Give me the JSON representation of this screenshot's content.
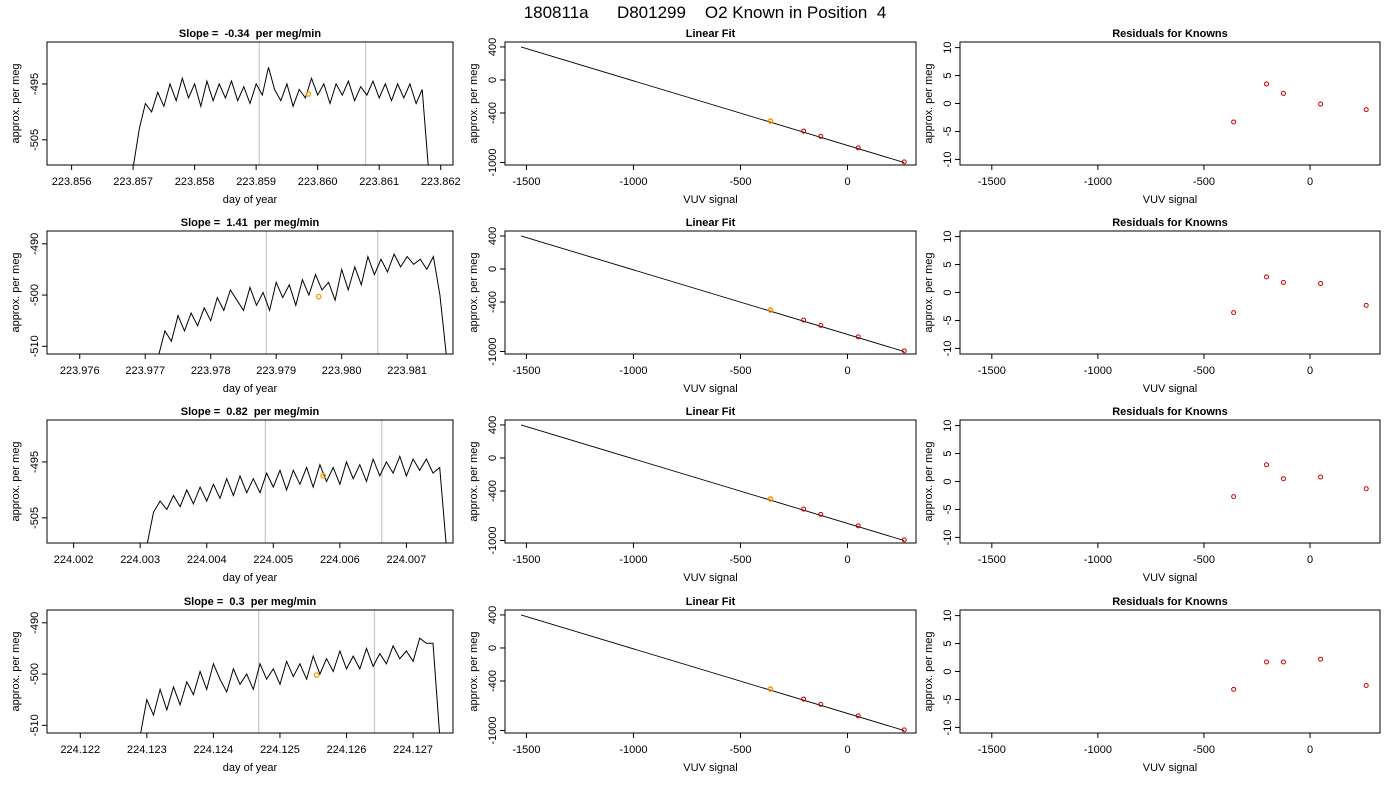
{
  "page_title": "180811a      D801299    O2 Known in Position  4",
  "colors": {
    "trace": "#000000",
    "knowns": "#cc0000",
    "highlight": "#ff9900",
    "marker_lines": "#c8c8c8"
  },
  "chart_data": [
    {
      "type": "line",
      "row": 1,
      "title": "Slope =  -0.34  per meg/min",
      "xlabel": "day of year",
      "ylabel": "approx. per meg",
      "xlim": [
        223.8556,
        223.8622
      ],
      "ylim": [
        -509.5,
        -487.5
      ],
      "xticks": [
        223.856,
        223.857,
        223.858,
        223.859,
        223.86,
        223.861,
        223.862
      ],
      "xtick_labels": [
        "223.856",
        "223.857",
        "223.858",
        "223.859",
        "223.860",
        "223.861",
        "223.862"
      ],
      "yticks": [
        -495,
        -505
      ],
      "ytick_labels": [
        "-495",
        "-505"
      ],
      "trace_x": [
        223.857,
        223.8571,
        223.8572,
        223.8573,
        223.8574,
        223.8575,
        223.8576,
        223.8577,
        223.8578,
        223.8579,
        223.858,
        223.8581,
        223.8582,
        223.8583,
        223.8584,
        223.8585,
        223.8586,
        223.8587,
        223.8588,
        223.8589,
        223.859,
        223.8591,
        223.8592,
        223.8593,
        223.8594,
        223.8595,
        223.8596,
        223.8597,
        223.8598,
        223.8599,
        223.86,
        223.8601,
        223.8602,
        223.8603,
        223.8604,
        223.8605,
        223.8606,
        223.8607,
        223.8608,
        223.8609,
        223.861,
        223.8611,
        223.8612,
        223.8613,
        223.8614,
        223.8615,
        223.8616,
        223.8617,
        223.8618
      ],
      "trace_y": [
        -510,
        -503,
        -498.5,
        -500,
        -496.5,
        -499,
        -495,
        -498,
        -494,
        -497.5,
        -495,
        -499,
        -494.5,
        -498,
        -495,
        -497.5,
        -494.5,
        -498,
        -495.5,
        -498.5,
        -495,
        -497,
        -492,
        -496,
        -498,
        -495,
        -499,
        -496,
        -497.5,
        -494,
        -497,
        -495,
        -498.5,
        -495,
        -497,
        -494.5,
        -498,
        -495.5,
        -497,
        -494.5,
        -497.5,
        -495,
        -498,
        -495,
        -497.5,
        -495,
        -498.5,
        -496,
        -510
      ],
      "marker_x": [
        223.85905,
        223.86078
      ],
      "highlight_points": [
        [
          223.85985,
          -496.8
        ]
      ]
    },
    {
      "type": "scatter",
      "row": 1,
      "title": "Linear Fit",
      "xlabel": "VUV signal",
      "ylabel": "approx. per meg",
      "xlim": [
        -1600,
        320
      ],
      "ylim": [
        -1030,
        460
      ],
      "xticks": [
        -1500,
        -1000,
        -500,
        0
      ],
      "xtick_labels": [
        "-1500",
        "-1000",
        "-500",
        "0"
      ],
      "yticks": [
        400,
        0,
        -400,
        -1000
      ],
      "ytick_labels": [
        "400",
        "0",
        "-400",
        "-1000"
      ],
      "fit_line": {
        "x": [
          -1525,
          265
        ],
        "y": [
          400,
          -1000
        ]
      },
      "knowns": {
        "x": [
          -360,
          -205,
          -125,
          50,
          265
        ],
        "y": [
          -497,
          -619,
          -683,
          -822,
          -992
        ]
      },
      "highlight_points": [
        [
          -360,
          -497
        ]
      ]
    },
    {
      "type": "scatter",
      "row": 1,
      "title": "Residuals for Knowns",
      "xlabel": "VUV signal",
      "ylabel": "approx. per meg",
      "xlim": [
        -1650,
        330
      ],
      "ylim": [
        -11,
        11
      ],
      "xticks": [
        -1500,
        -1000,
        -500,
        0
      ],
      "xtick_labels": [
        "-1500",
        "-1000",
        "-500",
        "0"
      ],
      "yticks": [
        10,
        5,
        0,
        -5,
        -10
      ],
      "ytick_labels": [
        "10",
        "5",
        "0",
        "-5",
        "-10"
      ],
      "knowns": {
        "x": [
          -360,
          -205,
          -125,
          50,
          265
        ],
        "y": [
          -3.3,
          3.5,
          1.8,
          -0.1,
          -1.1
        ]
      }
    },
    {
      "type": "line",
      "row": 2,
      "title": "Slope =  1.41  per meg/min",
      "xlabel": "day of year",
      "ylabel": "approx. per meg",
      "xlim": [
        223.9755,
        223.9817
      ],
      "ylim": [
        -511.5,
        -487.5
      ],
      "xticks": [
        223.976,
        223.977,
        223.978,
        223.979,
        223.98,
        223.981
      ],
      "xtick_labels": [
        "223.976",
        "223.977",
        "223.978",
        "223.979",
        "223.980",
        "223.981"
      ],
      "yticks": [
        -490,
        -500,
        -510
      ],
      "ytick_labels": [
        "-490",
        "-500",
        "-510"
      ],
      "trace_x": [
        223.9772,
        223.9773,
        223.9774,
        223.9775,
        223.9776,
        223.9777,
        223.9778,
        223.9779,
        223.978,
        223.9781,
        223.9782,
        223.9783,
        223.9784,
        223.9785,
        223.9786,
        223.9787,
        223.9788,
        223.9789,
        223.979,
        223.9791,
        223.9792,
        223.9793,
        223.9794,
        223.9795,
        223.9796,
        223.9797,
        223.9798,
        223.9799,
        223.98,
        223.9801,
        223.9802,
        223.9803,
        223.9804,
        223.9805,
        223.9806,
        223.9807,
        223.9808,
        223.9809,
        223.981,
        223.9811,
        223.9812,
        223.9813,
        223.9814,
        223.9815,
        223.9816
      ],
      "trace_y": [
        -512,
        -507,
        -509,
        -504,
        -507,
        -503.5,
        -506,
        -502.5,
        -505,
        -500.5,
        -503,
        -499,
        -501,
        -503,
        -498.5,
        -502,
        -499.5,
        -503,
        -497.5,
        -500.5,
        -498,
        -502,
        -497,
        -500,
        -496,
        -499,
        -497.5,
        -501,
        -495,
        -499,
        -494.5,
        -498,
        -492.5,
        -496,
        -493,
        -495.5,
        -492,
        -494.5,
        -492.5,
        -494,
        -493,
        -495,
        -492.5,
        -500,
        -512
      ],
      "marker_x": [
        223.97885,
        223.98055
      ],
      "highlight_points": [
        [
          223.97965,
          -500.3
        ]
      ]
    },
    {
      "type": "scatter",
      "row": 2,
      "title": "Linear Fit",
      "xlabel": "VUV signal",
      "ylabel": "approx. per meg",
      "xlim": [
        -1600,
        320
      ],
      "ylim": [
        -1030,
        460
      ],
      "xticks": [
        -1500,
        -1000,
        -500,
        0
      ],
      "xtick_labels": [
        "-1500",
        "-1000",
        "-500",
        "0"
      ],
      "yticks": [
        400,
        0,
        -400,
        -1000
      ],
      "ytick_labels": [
        "400",
        "0",
        "-400",
        "-1000"
      ],
      "fit_line": {
        "x": [
          -1525,
          265
        ],
        "y": [
          400,
          -1000
        ]
      },
      "knowns": {
        "x": [
          -360,
          -205,
          -125,
          50,
          265
        ],
        "y": [
          -497,
          -619,
          -683,
          -822,
          -992
        ]
      },
      "highlight_points": [
        [
          -360,
          -497
        ]
      ]
    },
    {
      "type": "scatter",
      "row": 2,
      "title": "Residuals for Knowns",
      "xlabel": "VUV signal",
      "ylabel": "approx. per meg",
      "xlim": [
        -1650,
        330
      ],
      "ylim": [
        -11,
        11
      ],
      "xticks": [
        -1500,
        -1000,
        -500,
        0
      ],
      "xtick_labels": [
        "-1500",
        "-1000",
        "-500",
        "0"
      ],
      "yticks": [
        10,
        5,
        0,
        -5,
        -10
      ],
      "ytick_labels": [
        "10",
        "5",
        "0",
        "-5",
        "-10"
      ],
      "knowns": {
        "x": [
          -360,
          -205,
          -125,
          50,
          265
        ],
        "y": [
          -3.6,
          2.8,
          1.8,
          1.6,
          -2.3
        ]
      }
    },
    {
      "type": "line",
      "row": 3,
      "title": "Slope =  0.82  per meg/min",
      "xlabel": "day of year",
      "ylabel": "approx. per meg",
      "xlim": [
        224.0016,
        224.0077
      ],
      "ylim": [
        -509.5,
        -487.5
      ],
      "xticks": [
        224.002,
        224.003,
        224.004,
        224.005,
        224.006,
        224.007
      ],
      "xtick_labels": [
        "224.002",
        "224.003",
        "224.004",
        "224.005",
        "224.006",
        "224.007"
      ],
      "yticks": [
        -495,
        -505
      ],
      "ytick_labels": [
        "-495",
        "-505"
      ],
      "trace_x": [
        224.0031,
        224.0032,
        224.0033,
        224.0034,
        224.0035,
        224.0036,
        224.0037,
        224.0038,
        224.0039,
        224.004,
        224.0041,
        224.0042,
        224.0043,
        224.0044,
        224.0045,
        224.0046,
        224.0047,
        224.0048,
        224.0049,
        224.005,
        224.0051,
        224.0052,
        224.0053,
        224.0054,
        224.0055,
        224.0056,
        224.0057,
        224.0058,
        224.0059,
        224.006,
        224.0061,
        224.0062,
        224.0063,
        224.0064,
        224.0065,
        224.0066,
        224.0067,
        224.0068,
        224.0069,
        224.007,
        224.0071,
        224.0072,
        224.0073,
        224.0074,
        224.0075,
        224.0076
      ],
      "trace_y": [
        -510,
        -504,
        -502,
        -503.5,
        -501,
        -503,
        -500,
        -502.5,
        -499.5,
        -502,
        -499,
        -501.5,
        -498,
        -501,
        -497.5,
        -500.5,
        -498,
        -500.5,
        -497,
        -499.5,
        -496.5,
        -500,
        -496.5,
        -499,
        -496,
        -499.5,
        -495.5,
        -498.5,
        -496,
        -499,
        -495,
        -498,
        -495.5,
        -498.5,
        -494.5,
        -497.5,
        -495,
        -497,
        -494,
        -497.5,
        -494.5,
        -496.5,
        -494.5,
        -497,
        -496,
        -510
      ],
      "marker_x": [
        224.00488,
        224.00663
      ],
      "highlight_points": [
        [
          224.00575,
          -497.5
        ]
      ]
    },
    {
      "type": "scatter",
      "row": 3,
      "title": "Linear Fit",
      "xlabel": "VUV signal",
      "ylabel": "approx. per meg",
      "xlim": [
        -1600,
        320
      ],
      "ylim": [
        -1030,
        460
      ],
      "xticks": [
        -1500,
        -1000,
        -500,
        0
      ],
      "xtick_labels": [
        "-1500",
        "-1000",
        "-500",
        "0"
      ],
      "yticks": [
        400,
        0,
        -400,
        -1000
      ],
      "ytick_labels": [
        "400",
        "0",
        "-400",
        "-1000"
      ],
      "fit_line": {
        "x": [
          -1525,
          265
        ],
        "y": [
          400,
          -1000
        ]
      },
      "knowns": {
        "x": [
          -360,
          -205,
          -125,
          50,
          265
        ],
        "y": [
          -497,
          -619,
          -683,
          -822,
          -992
        ]
      },
      "highlight_points": [
        [
          -360,
          -497
        ]
      ]
    },
    {
      "type": "scatter",
      "row": 3,
      "title": "Residuals for Knowns",
      "xlabel": "VUV signal",
      "ylabel": "approx. per meg",
      "xlim": [
        -1650,
        330
      ],
      "ylim": [
        -11,
        11
      ],
      "xticks": [
        -1500,
        -1000,
        -500,
        0
      ],
      "xtick_labels": [
        "-1500",
        "-1000",
        "-500",
        "0"
      ],
      "yticks": [
        10,
        5,
        0,
        -5,
        -10
      ],
      "ytick_labels": [
        "10",
        "5",
        "0",
        "-5",
        "-10"
      ],
      "knowns": {
        "x": [
          -360,
          -205,
          -125,
          50,
          265
        ],
        "y": [
          -2.7,
          3.0,
          0.5,
          0.8,
          -1.3
        ]
      }
    },
    {
      "type": "line",
      "row": 4,
      "title": "Slope =  0.3  per meg/min",
      "xlabel": "day of year",
      "ylabel": "approx. per meg",
      "xlim": [
        224.1215,
        224.1276
      ],
      "ylim": [
        -511.5,
        -487.5
      ],
      "xticks": [
        224.122,
        224.123,
        224.124,
        224.125,
        224.126,
        224.127
      ],
      "xtick_labels": [
        "224.122",
        "224.123",
        "224.124",
        "224.125",
        "224.126",
        "224.127"
      ],
      "yticks": [
        -490,
        -500,
        -510
      ],
      "ytick_labels": [
        "-490",
        "-500",
        "-510"
      ],
      "trace_x": [
        224.1229,
        224.123,
        224.1231,
        224.1232,
        224.1233,
        224.1234,
        224.1235,
        224.1236,
        224.1237,
        224.1238,
        224.1239,
        224.124,
        224.1241,
        224.1242,
        224.1243,
        224.1244,
        224.1245,
        224.1246,
        224.1247,
        224.1248,
        224.1249,
        224.125,
        224.1251,
        224.1252,
        224.1253,
        224.1254,
        224.1255,
        224.1256,
        224.1257,
        224.1258,
        224.1259,
        224.126,
        224.1261,
        224.1262,
        224.1263,
        224.1264,
        224.1265,
        224.1266,
        224.1267,
        224.1268,
        224.1269,
        224.127,
        224.1271,
        224.1272,
        224.1273,
        224.1274
      ],
      "trace_y": [
        -512,
        -505,
        -508,
        -503,
        -507,
        -502.5,
        -506,
        -501.5,
        -504,
        -499.5,
        -503,
        -498,
        -501,
        -503.5,
        -499,
        -502,
        -500,
        -503,
        -498,
        -501,
        -499,
        -502,
        -497.5,
        -500.5,
        -498,
        -501,
        -496.5,
        -500,
        -497,
        -499.5,
        -495.5,
        -499,
        -496.5,
        -499,
        -495,
        -498.5,
        -496,
        -498,
        -494.5,
        -497,
        -495.5,
        -497.5,
        -493,
        -494,
        -494,
        -512
      ],
      "marker_x": [
        224.12468,
        224.12642
      ],
      "highlight_points": [
        [
          224.12555,
          -500.2
        ]
      ]
    },
    {
      "type": "scatter",
      "row": 4,
      "title": "Linear Fit",
      "xlabel": "VUV signal",
      "ylabel": "approx. per meg",
      "xlim": [
        -1600,
        320
      ],
      "ylim": [
        -1030,
        460
      ],
      "xticks": [
        -1500,
        -1000,
        -500,
        0
      ],
      "xtick_labels": [
        "-1500",
        "-1000",
        "-500",
        "0"
      ],
      "yticks": [
        400,
        0,
        -400,
        -1000
      ],
      "ytick_labels": [
        "400",
        "0",
        "-400",
        "-1000"
      ],
      "fit_line": {
        "x": [
          -1525,
          265
        ],
        "y": [
          400,
          -1000
        ]
      },
      "knowns": {
        "x": [
          -360,
          -205,
          -125,
          50,
          265
        ],
        "y": [
          -497,
          -619,
          -683,
          -822,
          -992
        ]
      },
      "highlight_points": [
        [
          -360,
          -497
        ]
      ]
    },
    {
      "type": "scatter",
      "row": 4,
      "title": "Residuals for Knowns",
      "xlabel": "VUV signal",
      "ylabel": "approx. per meg",
      "xlim": [
        -1650,
        330
      ],
      "ylim": [
        -11,
        11
      ],
      "xticks": [
        -1500,
        -1000,
        -500,
        0
      ],
      "xtick_labels": [
        "-1500",
        "-1000",
        "-500",
        "0"
      ],
      "yticks": [
        10,
        5,
        0,
        -5,
        -10
      ],
      "ytick_labels": [
        "10",
        "5",
        "0",
        "-5",
        "-10"
      ],
      "knowns": {
        "x": [
          -360,
          -205,
          -125,
          50,
          265
        ],
        "y": [
          -3.2,
          1.7,
          1.7,
          2.2,
          -2.5
        ]
      }
    }
  ]
}
